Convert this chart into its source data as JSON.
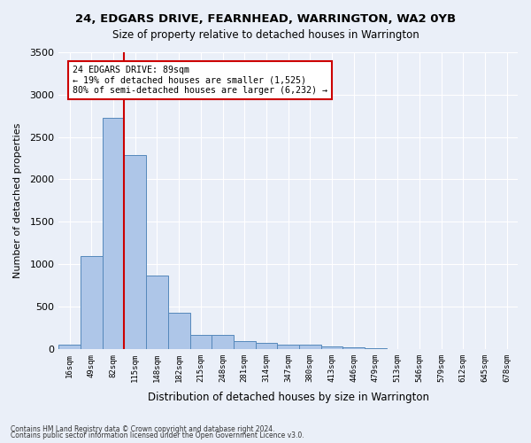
{
  "title": "24, EDGARS DRIVE, FEARNHEAD, WARRINGTON, WA2 0YB",
  "subtitle": "Size of property relative to detached houses in Warrington",
  "xlabel": "Distribution of detached houses by size in Warrington",
  "ylabel": "Number of detached properties",
  "bar_values": [
    55,
    1100,
    2730,
    2290,
    870,
    430,
    170,
    160,
    90,
    70,
    55,
    45,
    30,
    20,
    5,
    0,
    0,
    0,
    0,
    0,
    0
  ],
  "categories": [
    "16sqm",
    "49sqm",
    "82sqm",
    "115sqm",
    "148sqm",
    "182sqm",
    "215sqm",
    "248sqm",
    "281sqm",
    "314sqm",
    "347sqm",
    "380sqm",
    "413sqm",
    "446sqm",
    "479sqm",
    "513sqm",
    "546sqm",
    "579sqm",
    "612sqm",
    "645sqm",
    "678sqm"
  ],
  "bar_color": "#aec6e8",
  "bar_edge_color": "#5588bb",
  "vline_color": "#cc0000",
  "annotation_line1": "24 EDGARS DRIVE: 89sqm",
  "annotation_line2": "← 19% of detached houses are smaller (1,525)",
  "annotation_line3": "80% of semi-detached houses are larger (6,232) →",
  "annotation_box_color": "#ffffff",
  "annotation_box_edge": "#cc0000",
  "ylim": [
    0,
    3500
  ],
  "yticks": [
    0,
    500,
    1000,
    1500,
    2000,
    2500,
    3000,
    3500
  ],
  "footer1": "Contains HM Land Registry data © Crown copyright and database right 2024.",
  "footer2": "Contains public sector information licensed under the Open Government Licence v3.0.",
  "bg_color": "#eaeff8",
  "plot_bg_color": "#eaeff8",
  "grid_color": "#ffffff"
}
